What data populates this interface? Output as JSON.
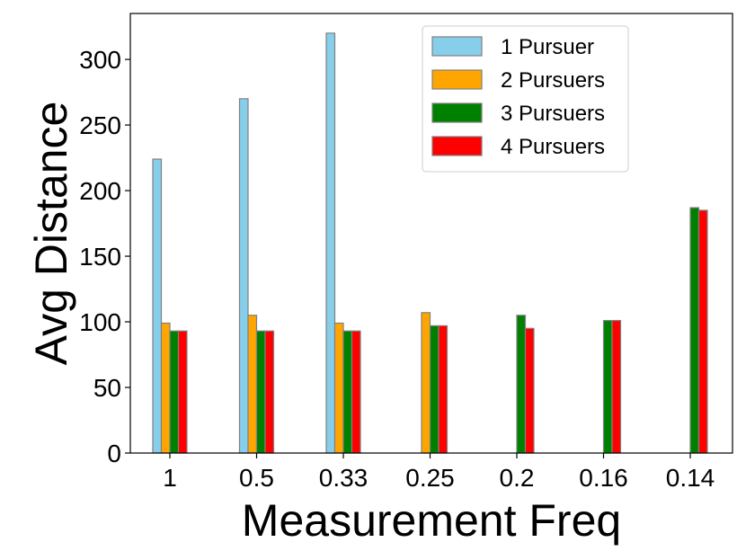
{
  "chart_data": {
    "type": "bar",
    "xlabel": "Measurement Freq",
    "ylabel": "Avg Distance",
    "categories": [
      "1",
      "0.5",
      "0.33",
      "0.25",
      "0.2",
      "0.16",
      "0.14"
    ],
    "ylim": [
      0,
      335
    ],
    "yticks": [
      0,
      50,
      100,
      150,
      200,
      250,
      300
    ],
    "grid": false,
    "legend_position": "top-right",
    "series": [
      {
        "name": "1 Pursuer",
        "color": "#87CEEB",
        "values": [
          224,
          270,
          320,
          0,
          0,
          0,
          0
        ]
      },
      {
        "name": "2 Pursuers",
        "color": "#FFA500",
        "values": [
          99,
          105,
          99,
          107,
          0,
          0,
          0
        ]
      },
      {
        "name": "3 Pursuers",
        "color": "#008000",
        "values": [
          93,
          93,
          93,
          97,
          105,
          101,
          187
        ]
      },
      {
        "name": "4 Pursuers",
        "color": "#FF0000",
        "values": [
          93,
          93,
          93,
          97,
          95,
          101,
          185
        ]
      }
    ]
  }
}
